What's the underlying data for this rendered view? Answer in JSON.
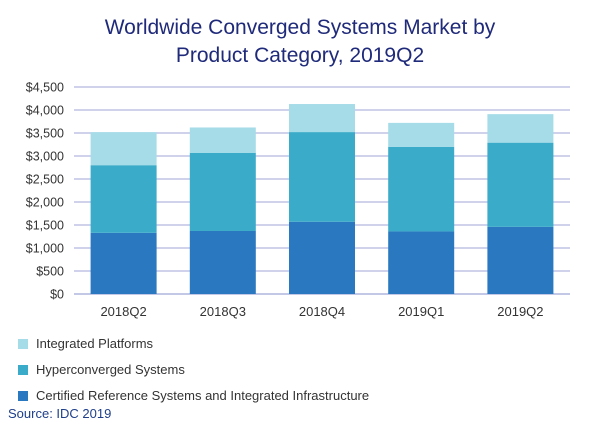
{
  "chart_data": {
    "type": "bar",
    "stacked": true,
    "title_lines": [
      "Worldwide Converged Systems Market by",
      "Product Category, 2019Q2"
    ],
    "categories": [
      "2018Q2",
      "2018Q3",
      "2018Q4",
      "2019Q1",
      "2019Q2"
    ],
    "series": [
      {
        "name": "Certified Reference Systems and Integrated Infrastructure",
        "color": "#2a78bf",
        "values": [
          1330,
          1370,
          1570,
          1360,
          1460
        ]
      },
      {
        "name": "Hyperconverged Systems",
        "color": "#3aabc8",
        "values": [
          1470,
          1700,
          1950,
          1840,
          1830
        ]
      },
      {
        "name": "Integrated Platforms",
        "color": "#a6dce8",
        "values": [
          720,
          550,
          610,
          520,
          620
        ]
      }
    ],
    "ylim": [
      0,
      4500
    ],
    "yticks": [
      0,
      500,
      1000,
      1500,
      2000,
      2500,
      3000,
      3500,
      4000,
      4500
    ],
    "ytick_labels": [
      "$0",
      "$500",
      "$1,000",
      "$1,500",
      "$2,000",
      "$2,500",
      "$3,000",
      "$3,500",
      "$4,000",
      "$4,500"
    ],
    "grid": true,
    "legend_position": "bottom",
    "legend_order": [
      "Integrated Platforms",
      "Hyperconverged Systems",
      "Certified Reference Systems and Integrated Infrastructure"
    ],
    "gridline_color": "#9fa6d6"
  },
  "source": "Source: IDC 2019"
}
